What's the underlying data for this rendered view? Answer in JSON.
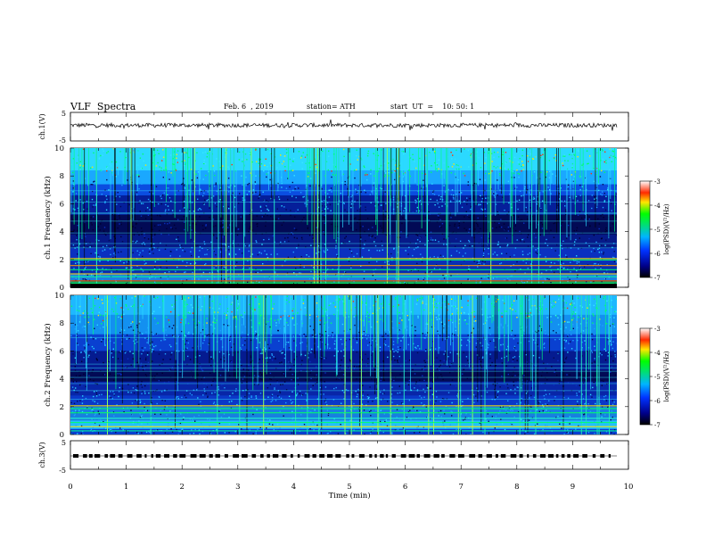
{
  "header": {
    "title": "VLF  Spectra",
    "date": "Feb. 6  , 2019",
    "station": "station= ATH",
    "start": "start  UT  =    10: 50: 1"
  },
  "colorbar_upper": {
    "ticks": [
      "-3",
      "-4",
      "-5",
      "-6",
      "-7"
    ],
    "label": "log(PSD)(V²/Hz)"
  },
  "colorbar_lower": {
    "ticks": [
      "-3",
      "-4",
      "-5",
      "-6",
      "-7"
    ],
    "label": "log(PSD)(V²/Hz)"
  },
  "colors": {
    "spectrogram_bg": "#0a1f8c",
    "dark_band": "#000033",
    "high_power": "#00dd44"
  },
  "chart_data": [
    {
      "type": "line",
      "name": "ch1-waveform",
      "ylabel": "ch.1(V)",
      "ylim": [
        -5,
        5
      ],
      "yticks": [
        "5",
        "-5"
      ],
      "x_range": [
        0,
        10
      ],
      "mean_value": 0.5,
      "noise_amplitude": 1.2
    },
    {
      "type": "heatmap",
      "name": "ch1-spectrogram",
      "ylabel": "ch.1  Frequency  (kHz)",
      "ylim": [
        0,
        10
      ],
      "yticks": [
        "0",
        "2",
        "4",
        "6",
        "8",
        "10"
      ],
      "x_range": [
        0,
        10
      ],
      "zlim": [
        -7,
        -3
      ],
      "zlabel": "log(PSD)(V²/Hz)"
    },
    {
      "type": "heatmap",
      "name": "ch2-spectrogram",
      "ylabel": "ch.2  Frequency  (kHz)",
      "ylim": [
        0,
        10
      ],
      "yticks": [
        "0",
        "2",
        "4",
        "6",
        "8",
        "10"
      ],
      "x_range": [
        0,
        10
      ],
      "zlim": [
        -7,
        -3
      ],
      "zlabel": "log(PSD)(V²/Hz)"
    },
    {
      "type": "line",
      "name": "ch3-timing",
      "ylabel": "ch.3(V)",
      "ylim": [
        -5,
        5
      ],
      "yticks": [
        "5",
        "-5"
      ],
      "x_range": [
        0,
        10
      ],
      "mean_value": 0,
      "xlabel": "Time  (min)",
      "xticks": [
        "0",
        "1",
        "2",
        "3",
        "4",
        "5",
        "6",
        "7",
        "8",
        "9",
        "10"
      ]
    }
  ]
}
